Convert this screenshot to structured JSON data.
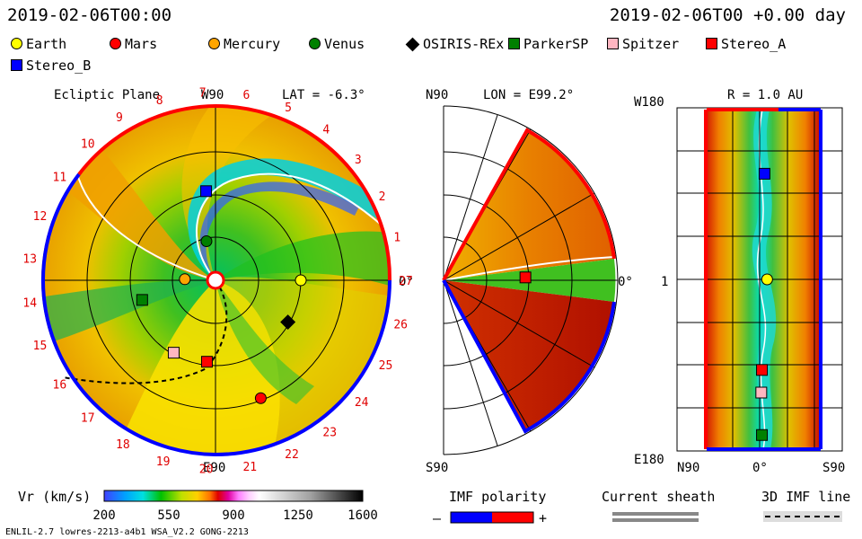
{
  "header": {
    "left_time": "2019-02-06T00:00",
    "right_time": "2019-02-06T00 +0.00 day"
  },
  "legend": [
    {
      "label": "Earth",
      "color": "#ffff00",
      "shape": "circle"
    },
    {
      "label": "Mars",
      "color": "#ff0000",
      "shape": "circle"
    },
    {
      "label": "Mercury",
      "color": "#ffa500",
      "shape": "circle"
    },
    {
      "label": "Venus",
      "color": "#008000",
      "shape": "circle"
    },
    {
      "label": "OSIRIS-REx",
      "color": "#000000",
      "shape": "diamond"
    },
    {
      "label": "ParkerSP",
      "color": "#008000",
      "shape": "square"
    },
    {
      "label": "Spitzer",
      "color": "#ffb6c1",
      "shape": "square"
    },
    {
      "label": "Stereo_A",
      "color": "#ff0000",
      "shape": "square"
    },
    {
      "label": "Stereo_B",
      "color": "#0000ff",
      "shape": "square"
    }
  ],
  "chart_data": [
    {
      "type": "heatmap",
      "panel": "ecliptic",
      "title": "Ecliptic Plane",
      "lat_label": "LAT = -6.3°",
      "top_label": "W90",
      "bottom_label": "E90",
      "right_label": "0°",
      "sector_numbers": [
        "1",
        "2",
        "3",
        "4",
        "5",
        "6",
        "7",
        "8",
        "9",
        "10",
        "11",
        "12",
        "13",
        "14",
        "15",
        "16",
        "17",
        "18",
        "19",
        "20",
        "21",
        "22",
        "23",
        "24",
        "25",
        "26",
        "27"
      ],
      "bodies": [
        {
          "name": "Earth",
          "angle_deg": 0,
          "r_au": 1.0
        },
        {
          "name": "Mars",
          "angle_deg": -69,
          "r_au": 1.48
        },
        {
          "name": "Mercury",
          "angle_deg": 178,
          "r_au": 0.36
        },
        {
          "name": "Venus",
          "angle_deg": 103,
          "r_au": 0.47
        },
        {
          "name": "OSIRIS-REx",
          "angle_deg": -30,
          "r_au": 0.98
        },
        {
          "name": "ParkerSP",
          "angle_deg": 195,
          "r_au": 0.89
        },
        {
          "name": "Spitzer",
          "angle_deg": -120,
          "r_au": 0.98
        },
        {
          "name": "Stereo_A",
          "angle_deg": -96,
          "r_au": 0.96
        },
        {
          "name": "Stereo_B",
          "angle_deg": 96,
          "r_au": 1.05
        }
      ]
    },
    {
      "type": "heatmap",
      "panel": "meridional",
      "title": "LON = E99.2°",
      "top_label": "N90",
      "bottom_label": "S90",
      "right_label": "0°",
      "bodies": [
        {
          "name": "Stereo_A",
          "lat_deg": 2,
          "r_au": 0.96
        }
      ]
    },
    {
      "type": "heatmap",
      "panel": "latlon",
      "title": "R = 1.0 AU",
      "y_top": "W180",
      "y_mid": "1",
      "y_bottom": "E180",
      "x_left": "N90",
      "x_mid": "0°",
      "x_right": "S90",
      "bodies": [
        {
          "name": "Stereo_B",
          "lat_deg": -2,
          "lon_deg": 112
        },
        {
          "name": "Earth",
          "lat_deg": -6,
          "lon_deg": 0
        },
        {
          "name": "Stereo_A",
          "lat_deg": 2,
          "lon_deg": -96
        },
        {
          "name": "Spitzer",
          "lat_deg": 3,
          "lon_deg": -120
        },
        {
          "name": "ParkerSP",
          "lat_deg": 2,
          "lon_deg": -165
        }
      ]
    },
    {
      "type": "colorbar",
      "title": "Vr (km/s)",
      "ticks": [
        "200",
        "550",
        "900",
        "1250",
        "1600"
      ],
      "range": [
        200,
        1600
      ]
    }
  ],
  "bottom": {
    "imf_title": "IMF polarity",
    "imf_minus": "–",
    "imf_plus": "+",
    "sheath_title": "Current sheath",
    "imf3d_title": "3D IMF line",
    "footer_left": "ENLIL-2.7 lowres-2213-a4b1 WSA_V2.2 GONG-2213"
  }
}
